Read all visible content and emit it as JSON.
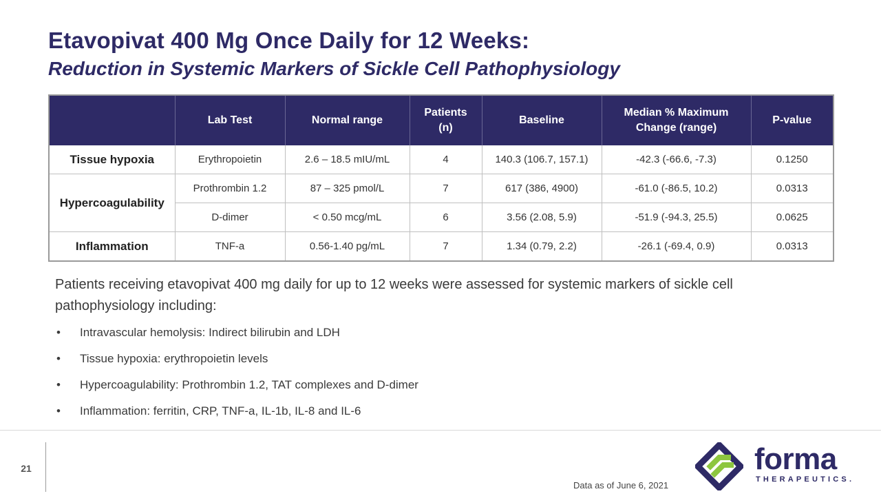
{
  "title": "Etavopivat 400 Mg Once Daily for 12 Weeks:",
  "subtitle": "Reduction in Systemic Markers of Sickle Cell Pathophysiology",
  "table": {
    "headers": [
      "",
      "Lab Test",
      "Normal range",
      "Patients (n)",
      "Baseline",
      "Median % Maximum Change (range)",
      "P-value"
    ],
    "rows": [
      {
        "category": "Tissue hypoxia",
        "test": "Erythropoietin",
        "range": "2.6 – 18.5 mIU/mL",
        "n": "4",
        "baseline": "140.3 (106.7, 157.1)",
        "change": "-42.3 (-66.6, -7.3)",
        "p": "0.1250"
      },
      {
        "category": "Hypercoagulability",
        "test": "Prothrombin 1.2",
        "range": "87 – 325 pmol/L",
        "n": "7",
        "baseline": "617 (386, 4900)",
        "change": "-61.0 (-86.5, 10.2)",
        "p": "0.0313"
      },
      {
        "category": "",
        "test": "D-dimer",
        "range": "< 0.50 mcg/mL",
        "n": "6",
        "baseline": "3.56 (2.08, 5.9)",
        "change": "-51.9 (-94.3, 25.5)",
        "p": "0.0625"
      },
      {
        "category": "Inflammation",
        "test": "TNF-a",
        "range": "0.56-1.40 pg/mL",
        "n": "7",
        "baseline": "1.34 (0.79, 2.2)",
        "change": "-26.1 (-69.4, 0.9)",
        "p": "0.0313"
      }
    ]
  },
  "paragraph": "Patients receiving etavopivat 400 mg daily for up to 12 weeks were assessed for systemic markers of sickle cell pathophysiology including:",
  "bullets": [
    "Intravascular hemolysis: Indirect bilirubin and LDH",
    "Tissue hypoxia: erythropoietin levels",
    "Hypercoagulability: Prothrombin 1.2, TAT complexes and D-dimer",
    "Inflammation: ferritin, CRP, TNF-a, IL-1b, IL-8 and IL-6"
  ],
  "page_number": "21",
  "footnote": "Data as of June 6, 2021",
  "logo": {
    "word": "forma",
    "sub": "THERAPEUTICS.",
    "icon": "forma-logo-icon",
    "colors": {
      "navy": "#2e2a66",
      "green": "#8dc63f"
    }
  }
}
